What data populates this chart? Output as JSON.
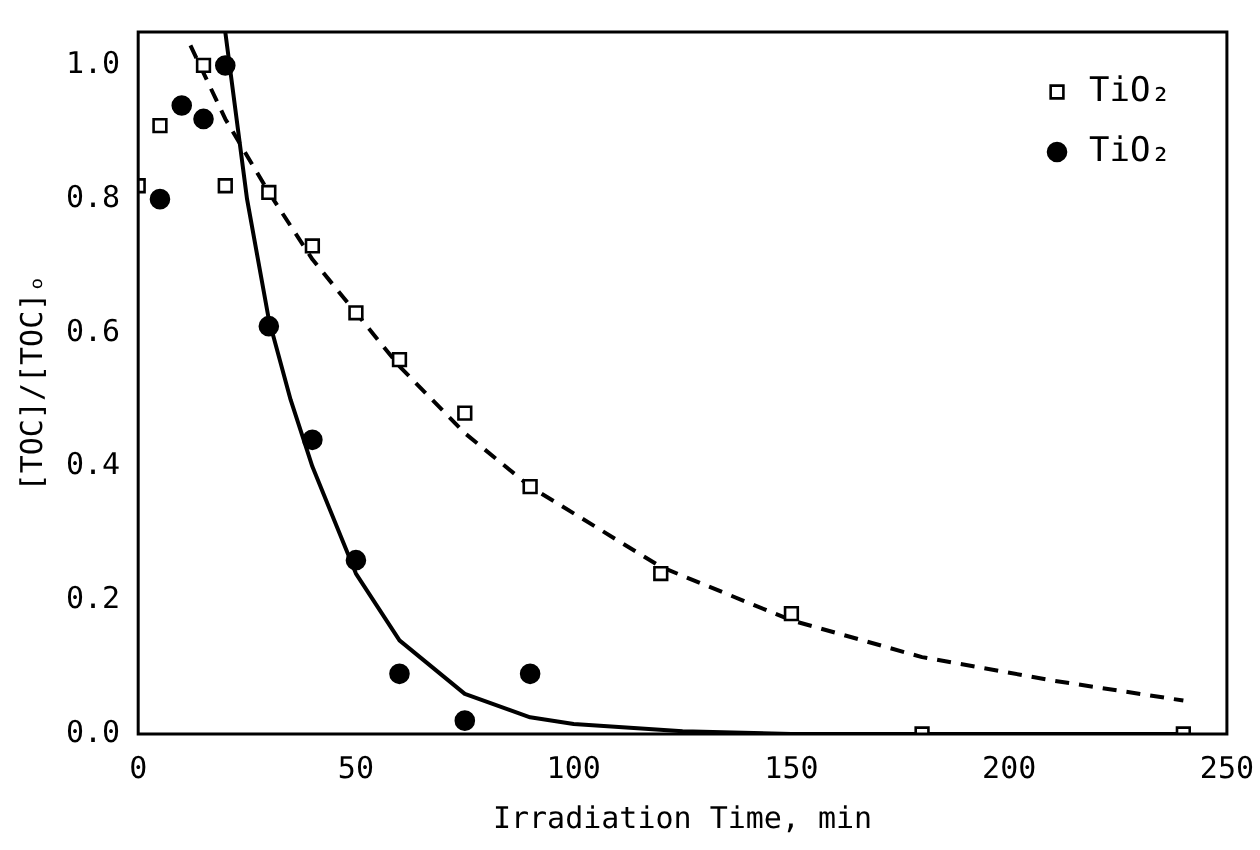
{
  "chart_data": {
    "type": "scatter",
    "xlabel": "Irradiation Time, min",
    "ylabel": "[TOC]/[TOC]ₒ",
    "xlim": [
      0,
      250
    ],
    "xticks": [
      0,
      50,
      100,
      150,
      200,
      250
    ],
    "ylim": [
      0,
      1.05
    ],
    "yticks": [
      {
        "value": 0,
        "label": "0.0"
      },
      {
        "value": 0.2,
        "label": "0.2"
      },
      {
        "value": 0.4,
        "label": "0.4"
      },
      {
        "value": 0.6,
        "label": "0.6"
      },
      {
        "value": 0.8,
        "label": "0.8"
      },
      {
        "value": 1,
        "label": "1.0"
      }
    ],
    "grid": false,
    "legend": "top right",
    "series": [
      {
        "name": "TiO₂",
        "type": "scatter",
        "marker": "square",
        "color": "#000000",
        "x": [
          0,
          5,
          15,
          20,
          30,
          40,
          50,
          60,
          75,
          90,
          120,
          150,
          180,
          240
        ],
        "values": [
          0.82,
          0.91,
          1.0,
          0.82,
          0.81,
          0.73,
          0.63,
          0.56,
          0.48,
          0.37,
          0.24,
          0.18,
          0.0,
          0.0
        ]
      },
      {
        "name": "TiO₂",
        "type": "scatter",
        "marker": "circle",
        "color": "#000000",
        "x": [
          5,
          10,
          15,
          20,
          30,
          40,
          50,
          60,
          75,
          90
        ],
        "values": [
          0.8,
          0.94,
          0.92,
          1.0,
          0.61,
          0.44,
          0.26,
          0.09,
          0.02,
          0.09
        ]
      },
      {
        "type": "line",
        "marker": "none",
        "line_style": "dashed",
        "color": "#000000",
        "x": [
          12,
          20,
          30,
          40,
          50,
          60,
          75,
          90,
          100,
          120,
          150,
          180,
          210,
          240
        ],
        "values": [
          1.03,
          0.92,
          0.81,
          0.71,
          0.63,
          0.55,
          0.45,
          0.37,
          0.33,
          0.25,
          0.17,
          0.115,
          0.08,
          0.05
        ]
      },
      {
        "type": "line",
        "marker": "none",
        "line_style": "solid",
        "color": "#000000",
        "x": [
          20,
          25,
          30,
          35,
          40,
          50,
          60,
          75,
          90,
          100,
          125,
          150,
          200,
          240
        ],
        "values": [
          1.05,
          0.8,
          0.62,
          0.5,
          0.4,
          0.24,
          0.14,
          0.06,
          0.025,
          0.015,
          0.004,
          0.0,
          0.0,
          0.0
        ]
      }
    ]
  }
}
